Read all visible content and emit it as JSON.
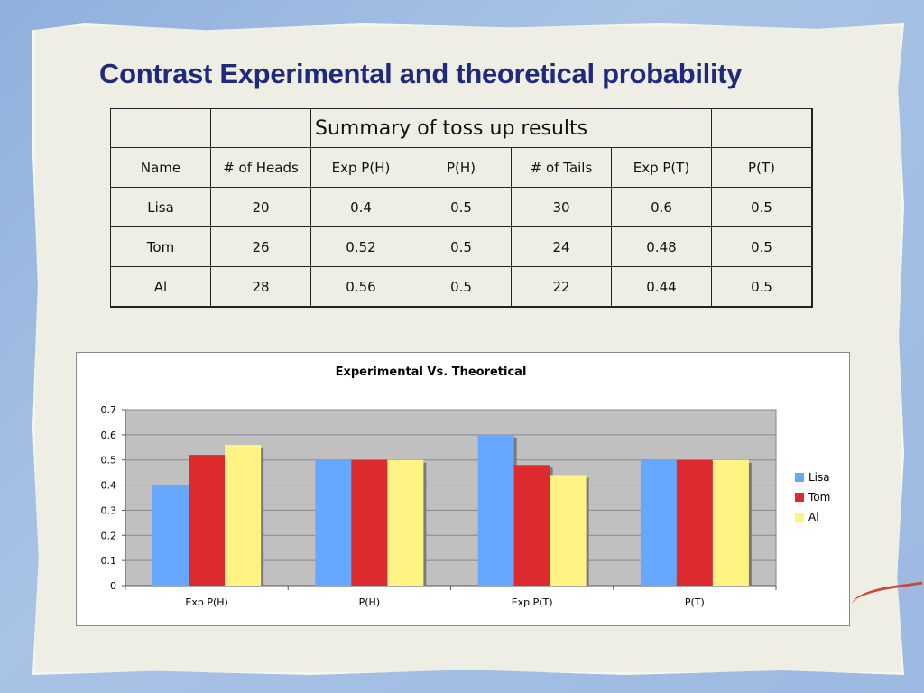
{
  "slide": {
    "title": "Contrast Experimental and theoretical probability"
  },
  "table": {
    "title": "Summary of toss up results",
    "headers": [
      "Name",
      "# of Heads",
      "Exp P(H)",
      "P(H)",
      "# of Tails",
      "Exp P(T)",
      "P(T)"
    ],
    "rows": [
      [
        "Lisa",
        "20",
        "0.4",
        "0.5",
        "30",
        "0.6",
        "0.5"
      ],
      [
        "Tom",
        "26",
        "0.52",
        "0.5",
        "24",
        "0.48",
        "0.5"
      ],
      [
        "Al",
        "28",
        "0.56",
        "0.5",
        "22",
        "0.44",
        "0.5"
      ]
    ]
  },
  "chart_data": {
    "type": "bar",
    "title": "Experimental Vs. Theoretical",
    "categories": [
      "Exp P(H)",
      "P(H)",
      "Exp P(T)",
      "P(T)"
    ],
    "series": [
      {
        "name": "Lisa",
        "values": [
          0.4,
          0.5,
          0.6,
          0.5
        ],
        "color": "#66a8ff"
      },
      {
        "name": "Tom",
        "values": [
          0.52,
          0.5,
          0.48,
          0.5
        ],
        "color": "#dc2a2f"
      },
      {
        "name": "Al",
        "values": [
          0.56,
          0.5,
          0.44,
          0.5
        ],
        "color": "#fff384"
      }
    ],
    "ylim": [
      0,
      0.7
    ],
    "yticks": [
      "0",
      "0.1",
      "0.2",
      "0.3",
      "0.4",
      "0.5",
      "0.6",
      "0.7"
    ],
    "ytick_values": [
      0,
      0.1,
      0.2,
      0.3,
      0.4,
      0.5,
      0.6,
      0.7
    ],
    "grid": true,
    "legend": "right",
    "plot_background": "#c0c0c0"
  }
}
